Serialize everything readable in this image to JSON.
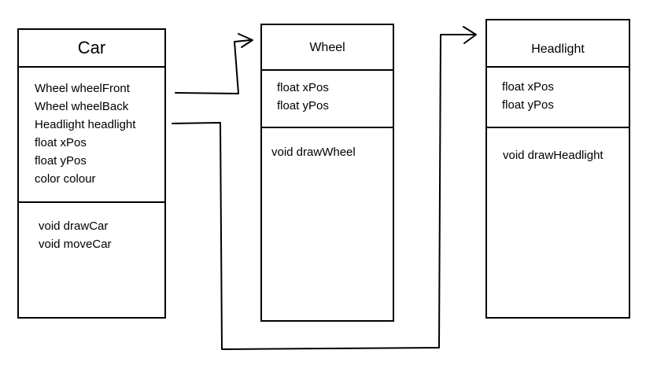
{
  "classes": {
    "car": {
      "name": "Car",
      "attributes": [
        "Wheel wheelFront",
        "Wheel wheelBack",
        "Headlight headlight",
        "float xPos",
        "float yPos",
        "color colour"
      ],
      "methods": [
        "void drawCar",
        "void moveCar"
      ]
    },
    "wheel": {
      "name": "Wheel",
      "attributes": [
        "float xPos",
        "float yPos"
      ],
      "methods": [
        "void drawWheel"
      ]
    },
    "headlight": {
      "name": "Headlight",
      "attributes": [
        "float xPos",
        "float yPos"
      ],
      "methods": [
        "void drawHeadlight"
      ]
    }
  },
  "relations": [
    {
      "from": "Car",
      "to": "Wheel"
    },
    {
      "from": "Car",
      "to": "Headlight"
    }
  ],
  "colors": {
    "line": "#000000",
    "background": "#ffffff"
  }
}
